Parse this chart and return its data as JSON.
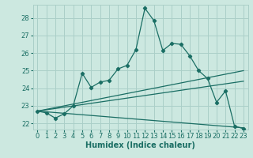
{
  "title": "",
  "xlabel": "Humidex (Indice chaleur)",
  "bg_color": "#cce8e0",
  "grid_color": "#aacfc8",
  "line_color": "#1a6e64",
  "xlim": [
    -0.5,
    23.5
  ],
  "ylim": [
    21.65,
    28.75
  ],
  "xticks": [
    0,
    1,
    2,
    3,
    4,
    5,
    6,
    7,
    8,
    9,
    10,
    11,
    12,
    13,
    14,
    15,
    16,
    17,
    18,
    19,
    20,
    21,
    22,
    23
  ],
  "yticks": [
    22,
    23,
    24,
    25,
    26,
    27,
    28
  ],
  "main_x": [
    0,
    1,
    2,
    3,
    4,
    5,
    6,
    7,
    8,
    9,
    10,
    11,
    12,
    13,
    14,
    15,
    16,
    17,
    18,
    19,
    20,
    21,
    22,
    23
  ],
  "main_y": [
    22.7,
    22.6,
    22.3,
    22.55,
    23.0,
    24.85,
    24.05,
    24.35,
    24.45,
    25.1,
    25.3,
    26.2,
    28.55,
    27.85,
    26.15,
    26.55,
    26.5,
    25.85,
    25.0,
    24.55,
    23.2,
    23.85,
    21.85,
    21.7
  ],
  "line1_x": [
    0,
    23
  ],
  "line1_y": [
    22.7,
    25.0
  ],
  "line2_x": [
    0,
    23
  ],
  "line2_y": [
    22.7,
    24.4
  ],
  "line3_x": [
    0,
    23
  ],
  "line3_y": [
    22.7,
    21.75
  ],
  "xlabel_fontsize": 7,
  "tick_fontsize": 6
}
